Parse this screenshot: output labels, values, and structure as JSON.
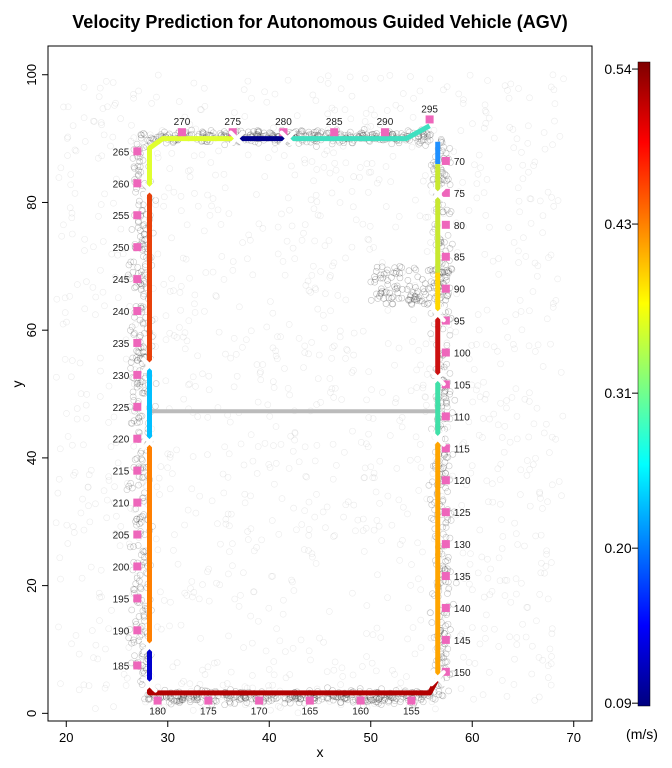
{
  "chart_data": {
    "type": "scatter",
    "title": "Velocity Prediction for Autonomous Guided Vehicle (AGV)",
    "xlabel": "x",
    "ylabel": "y",
    "xlim": [
      18.2,
      71.8
    ],
    "ylim": [
      -1.2,
      104.5
    ],
    "x_ticks": [
      20,
      30,
      40,
      50,
      60,
      70
    ],
    "y_ticks": [
      0,
      20,
      40,
      60,
      80,
      100
    ],
    "colorbar": {
      "label": "(m/s)",
      "range": [
        0.088,
        0.545
      ],
      "ticks": [
        0.09,
        0.2,
        0.31,
        0.43,
        0.54
      ],
      "colors": [
        "#00007f",
        "#0000ff",
        "#007fff",
        "#00ffff",
        "#7fff7f",
        "#ffff00",
        "#ff7f00",
        "#ff0000",
        "#7f0000"
      ]
    },
    "path_segments": [
      {
        "points": [
          [
            56.6,
            89.5
          ],
          [
            56.6,
            86
          ]
        ],
        "color": "#1e90ff"
      },
      {
        "points": [
          [
            56.6,
            86
          ],
          [
            56.6,
            69
          ]
        ],
        "color": "#c8e830"
      },
      {
        "points": [
          [
            56.6,
            69
          ],
          [
            56.6,
            62.5
          ]
        ],
        "color": "#ffd700"
      },
      {
        "points": [
          [
            56.6,
            62.5
          ],
          [
            56.6,
            52.5
          ]
        ],
        "color": "#cc1010"
      },
      {
        "points": [
          [
            56.6,
            52.5
          ],
          [
            56.6,
            43
          ]
        ],
        "color": "#40e0a8"
      },
      {
        "points": [
          [
            56.6,
            43
          ],
          [
            56.6,
            5.5
          ]
        ],
        "color": "#ffa500"
      },
      {
        "points": [
          [
            56.6,
            5.5
          ],
          [
            55.8,
            3.2
          ],
          [
            28.2,
            3.2
          ],
          [
            28.2,
            4.5
          ]
        ],
        "color": "#b20000"
      },
      {
        "points": [
          [
            28.2,
            4.5
          ],
          [
            28.2,
            10.5
          ]
        ],
        "color": "#0000cd"
      },
      {
        "points": [
          [
            28.2,
            10.5
          ],
          [
            28.2,
            42.5
          ]
        ],
        "color": "#ff7f00"
      },
      {
        "points": [
          [
            28.2,
            42.5
          ],
          [
            28.2,
            54.5
          ]
        ],
        "color": "#00bfff"
      },
      {
        "points": [
          [
            28.2,
            54.5
          ],
          [
            28.2,
            82
          ]
        ],
        "color": "#e8400a"
      },
      {
        "points": [
          [
            28.2,
            82
          ],
          [
            28.2,
            88.5
          ],
          [
            29.5,
            90
          ],
          [
            36.8,
            90
          ]
        ],
        "color": "#e0ff30"
      },
      {
        "points": [
          [
            36.8,
            90
          ],
          [
            41.8,
            90
          ]
        ],
        "color": "#00008b"
      },
      {
        "points": [
          [
            41.8,
            90
          ],
          [
            53.5,
            90
          ],
          [
            55.8,
            92
          ]
        ],
        "color": "#40e0c0"
      }
    ],
    "hidden_transition": {
      "points": [
        [
          28.2,
          47.3
        ],
        [
          56.6,
          47.3
        ]
      ],
      "color": "#bbbbbb"
    },
    "x_markers": [
      [
        56.6,
        81.3
      ],
      [
        56.6,
        62.5
      ],
      [
        56.6,
        52.5
      ],
      [
        56.6,
        43
      ],
      [
        56.6,
        5.5
      ],
      [
        28.2,
        4.5
      ],
      [
        28.2,
        10.5
      ],
      [
        28.2,
        42.5
      ],
      [
        28.2,
        54.5
      ],
      [
        28.2,
        82
      ],
      [
        36.8,
        90
      ],
      [
        41.8,
        90
      ]
    ],
    "point_markers": [
      {
        "label": "70",
        "x": 57.4,
        "y": 86.5,
        "side": "right"
      },
      {
        "label": "75",
        "x": 57.4,
        "y": 81.5,
        "side": "right"
      },
      {
        "label": "80",
        "x": 57.4,
        "y": 76.5,
        "side": "right"
      },
      {
        "label": "85",
        "x": 57.4,
        "y": 71.5,
        "side": "right"
      },
      {
        "label": "90",
        "x": 57.4,
        "y": 66.5,
        "side": "right"
      },
      {
        "label": "95",
        "x": 57.4,
        "y": 61.5,
        "side": "right"
      },
      {
        "label": "100",
        "x": 57.4,
        "y": 56.5,
        "side": "right"
      },
      {
        "label": "105",
        "x": 57.4,
        "y": 51.5,
        "side": "right"
      },
      {
        "label": "110",
        "x": 57.4,
        "y": 46.5,
        "side": "right"
      },
      {
        "label": "115",
        "x": 57.4,
        "y": 41.5,
        "side": "right"
      },
      {
        "label": "120",
        "x": 57.4,
        "y": 36.5,
        "side": "right"
      },
      {
        "label": "125",
        "x": 57.4,
        "y": 31.5,
        "side": "right"
      },
      {
        "label": "130",
        "x": 57.4,
        "y": 26.5,
        "side": "right"
      },
      {
        "label": "135",
        "x": 57.4,
        "y": 21.5,
        "side": "right"
      },
      {
        "label": "140",
        "x": 57.4,
        "y": 16.5,
        "side": "right"
      },
      {
        "label": "145",
        "x": 57.4,
        "y": 11.5,
        "side": "right"
      },
      {
        "label": "150",
        "x": 57.4,
        "y": 6.5,
        "side": "right"
      },
      {
        "label": "155",
        "x": 54,
        "y": 2,
        "side": "below"
      },
      {
        "label": "160",
        "x": 49,
        "y": 2,
        "side": "below"
      },
      {
        "label": "165",
        "x": 44,
        "y": 2,
        "side": "below"
      },
      {
        "label": "170",
        "x": 39,
        "y": 2,
        "side": "below"
      },
      {
        "label": "175",
        "x": 34,
        "y": 2,
        "side": "below"
      },
      {
        "label": "180",
        "x": 29,
        "y": 2,
        "side": "below"
      },
      {
        "label": "185",
        "x": 27,
        "y": 7.5,
        "side": "left"
      },
      {
        "label": "190",
        "x": 27,
        "y": 13,
        "side": "left"
      },
      {
        "label": "195",
        "x": 27,
        "y": 18,
        "side": "left"
      },
      {
        "label": "200",
        "x": 27,
        "y": 23,
        "side": "left"
      },
      {
        "label": "205",
        "x": 27,
        "y": 28,
        "side": "left"
      },
      {
        "label": "210",
        "x": 27,
        "y": 33,
        "side": "left"
      },
      {
        "label": "215",
        "x": 27,
        "y": 38,
        "side": "left"
      },
      {
        "label": "220",
        "x": 27,
        "y": 43,
        "side": "left"
      },
      {
        "label": "225",
        "x": 27,
        "y": 48,
        "side": "left"
      },
      {
        "label": "230",
        "x": 27,
        "y": 53,
        "side": "left"
      },
      {
        "label": "235",
        "x": 27,
        "y": 58,
        "side": "left"
      },
      {
        "label": "240",
        "x": 27,
        "y": 63,
        "side": "left"
      },
      {
        "label": "245",
        "x": 27,
        "y": 68,
        "side": "left"
      },
      {
        "label": "250",
        "x": 27,
        "y": 73,
        "side": "left"
      },
      {
        "label": "255",
        "x": 27,
        "y": 78,
        "side": "left"
      },
      {
        "label": "260",
        "x": 27,
        "y": 83,
        "side": "left"
      },
      {
        "label": "265",
        "x": 27,
        "y": 88,
        "side": "left"
      },
      {
        "label": "270",
        "x": 31.4,
        "y": 91,
        "side": "above"
      },
      {
        "label": "275",
        "x": 36.4,
        "y": 91,
        "side": "above"
      },
      {
        "label": "280",
        "x": 41.4,
        "y": 91,
        "side": "above"
      },
      {
        "label": "285",
        "x": 46.4,
        "y": 91,
        "side": "above"
      },
      {
        "label": "290",
        "x": 51.4,
        "y": 91,
        "side": "above"
      },
      {
        "label": "295",
        "x": 55.8,
        "y": 93,
        "side": "above"
      }
    ],
    "background_density": {
      "description": "thousands of faint grey circles (observed AGV positions), densest along path edges",
      "color": "#000000"
    }
  }
}
